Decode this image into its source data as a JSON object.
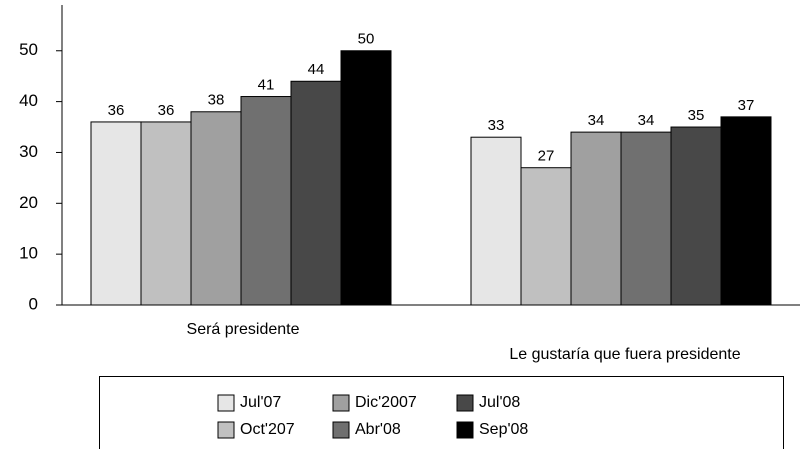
{
  "chart_data": {
    "type": "bar",
    "categories": [
      "Será presidente",
      "Le gustaría que fuera presidente"
    ],
    "series": [
      {
        "name": "Jul'07",
        "color": "#e6e6e6",
        "values": [
          36,
          33
        ]
      },
      {
        "name": "Oct'207",
        "color": "#c0c0c0",
        "values": [
          36,
          27
        ]
      },
      {
        "name": "Dic'2007",
        "color": "#a0a0a0",
        "values": [
          38,
          34
        ]
      },
      {
        "name": "Abr'08",
        "color": "#707070",
        "values": [
          41,
          34
        ]
      },
      {
        "name": "Jul'08",
        "color": "#484848",
        "values": [
          44,
          35
        ]
      },
      {
        "name": "Sep'08",
        "color": "#000000",
        "values": [
          50,
          37
        ]
      }
    ],
    "ylim": [
      0,
      59
    ],
    "yticks": [
      0,
      10,
      20,
      30,
      40,
      50
    ],
    "grid": false
  }
}
